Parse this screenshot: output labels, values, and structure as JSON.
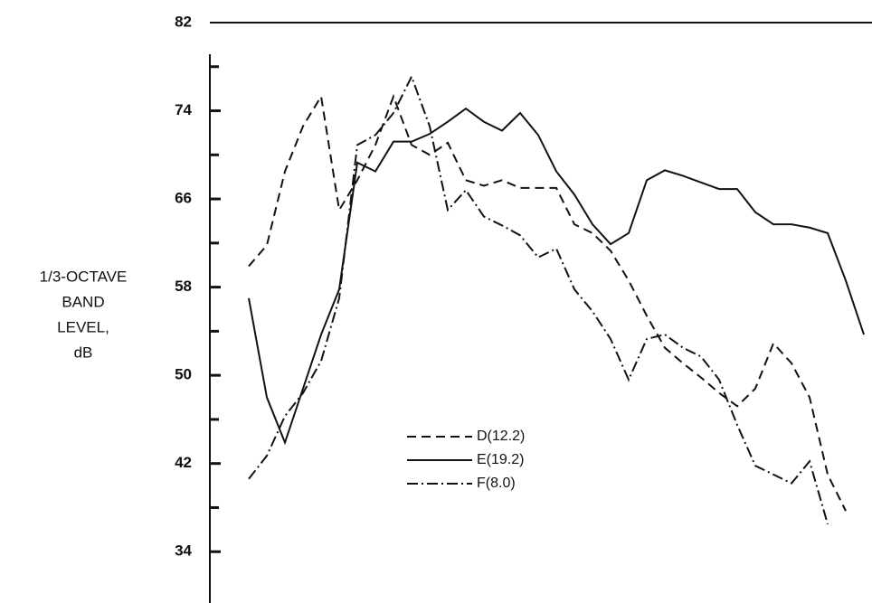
{
  "chart_data": {
    "type": "line",
    "ylabel_lines": [
      "1/3-OCTAVE",
      "BAND",
      "LEVEL,",
      "dB"
    ],
    "categories": [
      null,
      null,
      null,
      null,
      null,
      null,
      null,
      null,
      null,
      null,
      null,
      null,
      null,
      null,
      null,
      null,
      null,
      null,
      null,
      null,
      null,
      null,
      null,
      null,
      null,
      null,
      null,
      null,
      null,
      null,
      null,
      null,
      null,
      null,
      null
    ],
    "series": [
      {
        "name": "D(12.2)",
        "color": "#111111",
        "dash": "dashed",
        "values": [
          59.9,
          61.8,
          68.5,
          72.6,
          75.3,
          65.0,
          67.7,
          70.9,
          75.3,
          70.9,
          70.0,
          71.1,
          67.7,
          67.2,
          67.7,
          67.0,
          67.0,
          67.0,
          63.7,
          62.9,
          61.3,
          58.6,
          55.4,
          52.5,
          51.1,
          49.8,
          48.4,
          47.2,
          48.8,
          52.9,
          51.1,
          48.0,
          41.0,
          37.7,
          null
        ]
      },
      {
        "name": "E(19.2)",
        "color": "#111111",
        "dash": "solid",
        "values": [
          57.0,
          48.0,
          43.9,
          48.8,
          53.7,
          57.8,
          69.3,
          68.5,
          71.2,
          71.2,
          71.9,
          73.0,
          74.2,
          73.0,
          72.2,
          73.8,
          71.8,
          68.5,
          66.4,
          63.7,
          61.9,
          62.9,
          67.7,
          68.6,
          68.1,
          67.5,
          66.9,
          66.9,
          64.8,
          63.7,
          63.7,
          63.4,
          62.9,
          58.6,
          53.7
        ]
      },
      {
        "name": "F(8.0)",
        "color": "#111111",
        "dash": "dashdot",
        "values": [
          40.6,
          42.7,
          46.3,
          48.4,
          51.3,
          57.0,
          70.9,
          71.8,
          73.8,
          77.1,
          72.6,
          65.0,
          66.8,
          64.4,
          63.6,
          62.7,
          60.7,
          61.5,
          57.8,
          55.8,
          53.3,
          49.6,
          53.3,
          53.7,
          52.5,
          51.7,
          49.6,
          45.5,
          41.8,
          41.0,
          40.2,
          42.2,
          36.5,
          null,
          null
        ]
      }
    ],
    "ylim": [
      30,
      82
    ],
    "yticks": [
      34,
      42,
      50,
      58,
      66,
      74,
      82
    ],
    "minor_yticks": [
      38,
      46,
      54,
      62,
      70,
      78
    ]
  }
}
